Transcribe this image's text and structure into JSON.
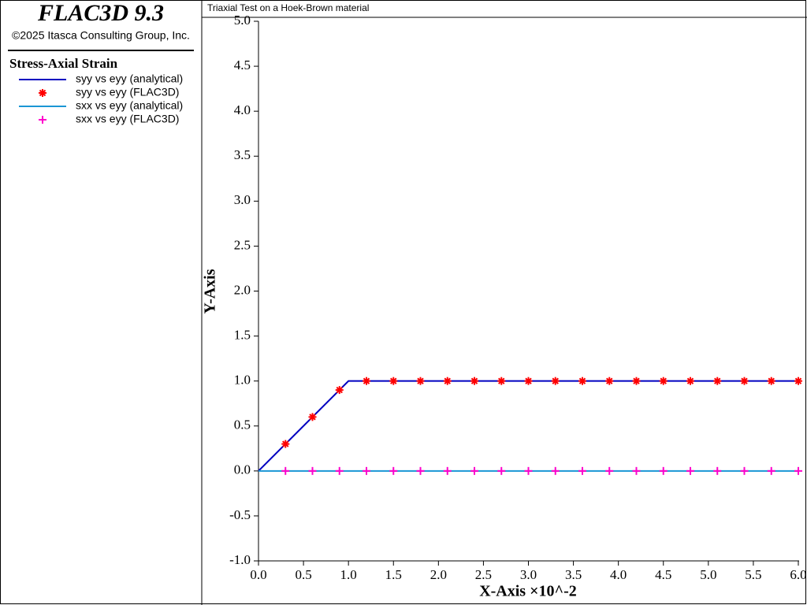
{
  "header": {
    "title": "FLAC3D 9.3",
    "copyright": "©2025 Itasca Consulting Group, Inc."
  },
  "chart_data": {
    "type": "line",
    "title": "Triaxial Test on a Hoek-Brown material",
    "legend_title": "Stress-Axial Strain",
    "x_label": "X-Axis ×10^-2",
    "y_label": "Y-Axis",
    "xlim": [
      0,
      6
    ],
    "ylim": [
      -1,
      5
    ],
    "xticks": [
      {
        "value": 0,
        "label": "0.0"
      },
      0.5,
      {
        "value": 1,
        "label": "1.0"
      },
      1.5,
      {
        "value": 2,
        "label": "2.0"
      },
      2.5,
      {
        "value": 3,
        "label": "3.0"
      },
      3.5,
      {
        "value": 4,
        "label": "4.0"
      },
      4.5,
      {
        "value": 5,
        "label": "5.0"
      },
      5.5,
      {
        "value": 6,
        "label": "6.0"
      }
    ],
    "yticks": [
      {
        "value": -1,
        "label": "-1.0"
      },
      -0.5,
      {
        "value": 0,
        "label": "0.0"
      },
      0.5,
      {
        "value": 1,
        "label": "1.0"
      },
      1.5,
      {
        "value": 2,
        "label": "2.0"
      },
      2.5,
      {
        "value": 3,
        "label": "3.0"
      },
      3.5,
      {
        "value": 4,
        "label": "4.0"
      },
      4.5,
      {
        "value": 5,
        "label": "5.0"
      }
    ],
    "series": [
      {
        "name": "syy vs eyy (analytical)",
        "color": "#0000c0",
        "mark": "line",
        "x": [
          0,
          1,
          6
        ],
        "values": [
          0,
          1,
          1
        ]
      },
      {
        "name": "syy vs eyy (FLAC3D)",
        "color": "#ff0000",
        "mark": "asterisk",
        "x": [
          0.3,
          0.6,
          0.9,
          1.2,
          1.5,
          1.8,
          2.1,
          2.4,
          2.7,
          3.0,
          3.3,
          3.6,
          3.9,
          4.2,
          4.5,
          4.8,
          5.1,
          5.4,
          5.7,
          6.0
        ],
        "values": [
          0.3,
          0.6,
          0.9,
          1,
          1,
          1,
          1,
          1,
          1,
          1,
          1,
          1,
          1,
          1,
          1,
          1,
          1,
          1,
          1,
          1
        ]
      },
      {
        "name": "sxx vs eyy (analytical)",
        "color": "#1a96d4",
        "mark": "line",
        "x": [
          0,
          6
        ],
        "values": [
          0,
          0
        ]
      },
      {
        "name": "sxx vs eyy (FLAC3D)",
        "color": "#ff00cc",
        "mark": "plus",
        "x": [
          0.3,
          0.6,
          0.9,
          1.2,
          1.5,
          1.8,
          2.1,
          2.4,
          2.7,
          3.0,
          3.3,
          3.6,
          3.9,
          4.2,
          4.5,
          4.8,
          5.1,
          5.4,
          5.7,
          6.0
        ],
        "values": [
          0,
          0,
          0,
          0,
          0,
          0,
          0,
          0,
          0,
          0,
          0,
          0,
          0,
          0,
          0,
          0,
          0,
          0,
          0,
          0
        ]
      }
    ]
  }
}
